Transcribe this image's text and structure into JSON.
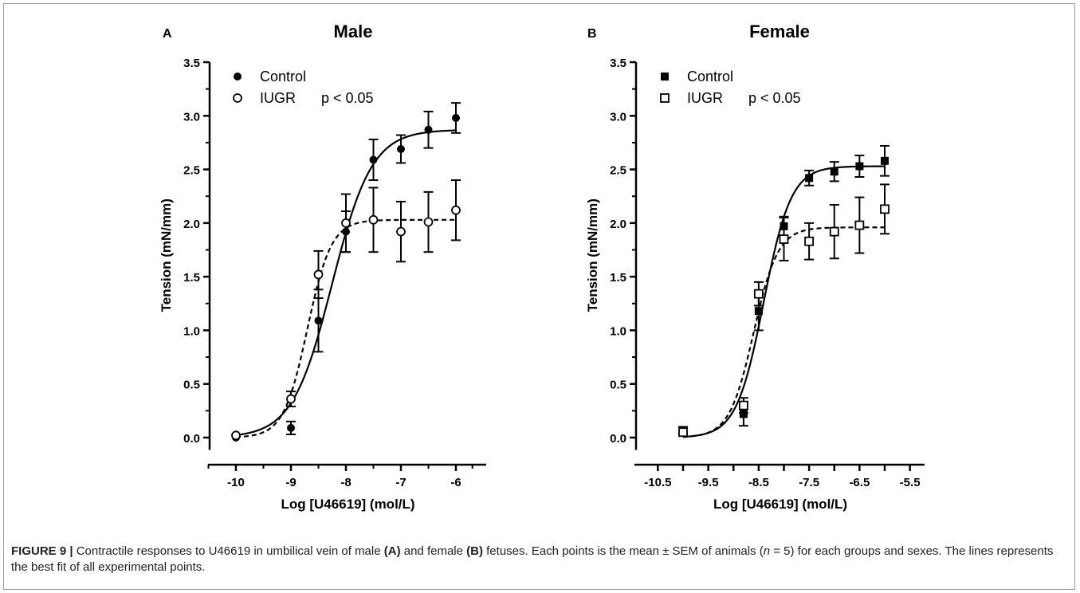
{
  "chart_data": [
    {
      "type": "scatter",
      "panel_letter": "A",
      "title": "Male",
      "xlabel": "Log [U46619] (mol/L)",
      "ylabel": "Tension (mN/mm)",
      "xlim": [
        -10.5,
        -5.7
      ],
      "ylim": [
        -0.1,
        3.5
      ],
      "xticks": [
        -10,
        -9,
        -8,
        -7,
        -6
      ],
      "xtick_labels": [
        "-10",
        "-9",
        "-8",
        "-7",
        "-6"
      ],
      "yticks": [
        0.0,
        0.5,
        1.0,
        1.5,
        2.0,
        2.5,
        3.0,
        3.5
      ],
      "ytick_labels": [
        "0.0",
        "0.5",
        "1.0",
        "1.5",
        "2.0",
        "2.5",
        "3.0",
        "3.5"
      ],
      "legend_position": "top-left",
      "annotation": "p < 0.05",
      "series": [
        {
          "name": "Control",
          "marker": "filled-circle",
          "line": "solid",
          "x": [
            -10,
            -9,
            -8.5,
            -8,
            -7.5,
            -7,
            -6.5,
            -6
          ],
          "y": [
            0.0,
            0.09,
            1.09,
            1.92,
            2.59,
            2.69,
            2.87,
            2.98
          ],
          "sem": [
            0.0,
            0.06,
            0.29,
            0.19,
            0.19,
            0.13,
            0.17,
            0.14
          ],
          "fit": {
            "bottom": 0.0,
            "top": 2.87,
            "logec50": -8.25,
            "hill": 1.2
          }
        },
        {
          "name": "IUGR",
          "marker": "open-circle",
          "line": "dashed",
          "x": [
            -10,
            -9,
            -8.5,
            -8,
            -7.5,
            -7,
            -6.5,
            -6
          ],
          "y": [
            0.02,
            0.36,
            1.52,
            2.0,
            2.03,
            1.92,
            2.01,
            2.12
          ],
          "sem": [
            0.0,
            0.07,
            0.22,
            0.27,
            0.3,
            0.28,
            0.28,
            0.28
          ],
          "fit": {
            "bottom": 0.0,
            "top": 2.03,
            "logec50": -8.7,
            "hill": 2.0
          }
        }
      ]
    },
    {
      "type": "scatter",
      "panel_letter": "B",
      "title": "Female",
      "xlabel": "Log [U46619] (mol/L)",
      "ylabel": "Tension (mN/mm)",
      "xlim": [
        -10.5,
        -5.5
      ],
      "ylim": [
        -0.1,
        3.5
      ],
      "xticks": [
        -10.5,
        -10,
        -9.5,
        -9,
        -8.5,
        -8,
        -7.5,
        -7,
        -6.5,
        -6,
        -5.5
      ],
      "xtick_labels": [
        "-10.5",
        "",
        "-9.5",
        "",
        "-8.5",
        "",
        "-7.5",
        "",
        "-6.5",
        "",
        "-5.5"
      ],
      "yticks": [
        0.0,
        0.5,
        1.0,
        1.5,
        2.0,
        2.5,
        3.0,
        3.5
      ],
      "ytick_labels": [
        "0.0",
        "0.5",
        "1.0",
        "1.5",
        "2.0",
        "2.5",
        "3.0",
        "3.5"
      ],
      "legend_position": "top-left",
      "annotation": "p < 0.05",
      "series": [
        {
          "name": "Control",
          "marker": "filled-square",
          "line": "solid",
          "x": [
            -10,
            -8.8,
            -8.5,
            -8,
            -7.5,
            -7,
            -6.5,
            -6
          ],
          "y": [
            0.07,
            0.22,
            1.18,
            1.97,
            2.42,
            2.48,
            2.53,
            2.58
          ],
          "sem": [
            0.03,
            0.11,
            0.18,
            0.09,
            0.07,
            0.09,
            0.1,
            0.14
          ],
          "fit": {
            "bottom": 0.0,
            "top": 2.53,
            "logec50": -8.4,
            "hill": 1.6
          }
        },
        {
          "name": "IUGR",
          "marker": "open-square",
          "line": "dashed",
          "x": [
            -10,
            -8.8,
            -8.5,
            -8,
            -7.5,
            -7,
            -6.5,
            -6
          ],
          "y": [
            0.05,
            0.3,
            1.34,
            1.85,
            1.83,
            1.92,
            1.98,
            2.13
          ],
          "sem": [
            0.02,
            0.07,
            0.11,
            0.2,
            0.17,
            0.25,
            0.26,
            0.23
          ],
          "fit": {
            "bottom": 0.0,
            "top": 1.96,
            "logec50": -8.6,
            "hill": 1.8
          }
        }
      ]
    }
  ],
  "caption": {
    "label": "FIGURE 9 |",
    "text_parts": [
      {
        "t": " Contractile responses to U46619 in umbilical vein of male ",
        "s": "n"
      },
      {
        "t": "(A)",
        "s": "b"
      },
      {
        "t": " and female ",
        "s": "n"
      },
      {
        "t": "(B)",
        "s": "b"
      },
      {
        "t": " fetuses. Each points is the mean ± SEM of animals (",
        "s": "n"
      },
      {
        "t": "n",
        "s": "i"
      },
      {
        "t": " = 5) for each groups and sexes. The lines represents the best fit of all experimental points.",
        "s": "n"
      }
    ]
  }
}
